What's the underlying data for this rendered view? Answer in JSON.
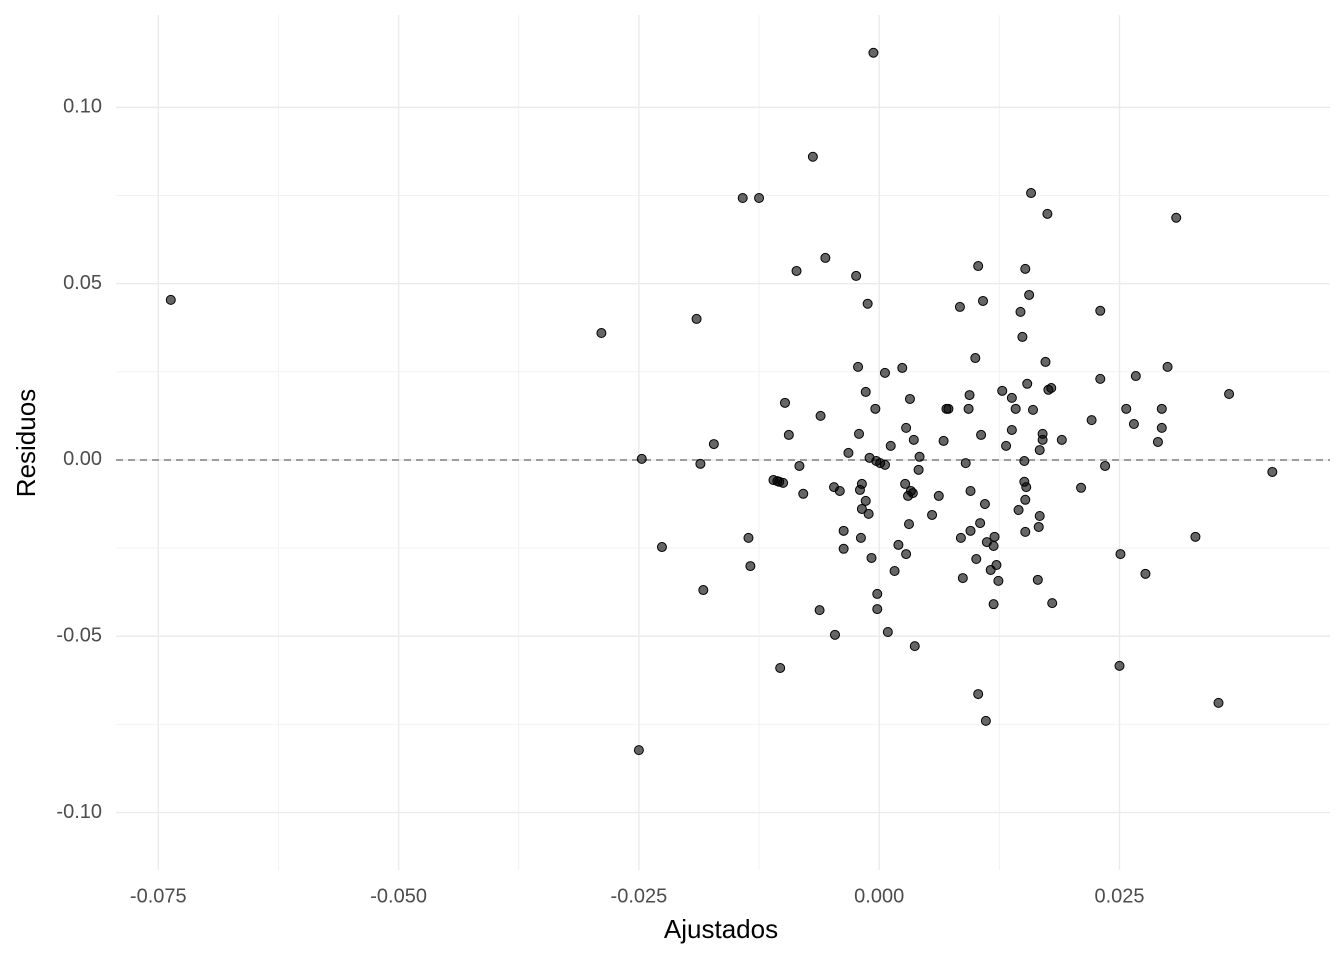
{
  "chart_data": {
    "type": "scatter",
    "x_label": "Ajustados",
    "y_label": "Residuos",
    "color": "#000000",
    "opacity": 0.6,
    "grid": true,
    "hline": 0,
    "xlim": [
      -0.0794,
      0.0469
    ],
    "ylim": [
      -0.1163,
      0.1262
    ],
    "xticks": [
      {
        "value": -0.075,
        "label": "-0.075"
      },
      {
        "value": -0.05,
        "label": "-0.050"
      },
      {
        "value": -0.025,
        "label": "-0.025"
      },
      {
        "value": 0,
        "label": "0.000"
      },
      {
        "value": 0.025,
        "label": "0.025"
      }
    ],
    "yticks": [
      {
        "value": -0.1,
        "label": "-0.10"
      },
      {
        "value": -0.05,
        "label": "-0.05"
      },
      {
        "value": 0,
        "label": "0.00"
      },
      {
        "value": 0.05,
        "label": "0.05"
      },
      {
        "value": 0.1,
        "label": "0.10"
      }
    ],
    "x": [
      -0.0737,
      -0.0289,
      -0.0247,
      -0.025,
      -0.0226,
      -0.019,
      -0.0186,
      -0.0183,
      -0.0172,
      -0.0142,
      -0.0125,
      -0.0136,
      -0.0134,
      -0.0103,
      -0.0098,
      -0.0094,
      -0.011,
      -0.0106,
      -0.0104,
      -0.01,
      -0.0086,
      -0.0083,
      -0.0079,
      -0.0069,
      -0.0062,
      -0.0061,
      -0.0056,
      -0.0047,
      -0.0046,
      -0.0041,
      -0.0037,
      -0.0037,
      -0.0032,
      -0.0024,
      -0.0022,
      -0.0021,
      -0.002,
      -0.0019,
      -0.0018,
      -0.0018,
      -0.0014,
      -0.0014,
      -0.0012,
      -0.0011,
      -0.001,
      -0.0008,
      -0.0006,
      -0.0004,
      -0.0003,
      -0.0002,
      -0.0002,
      0.0001,
      0.0006,
      0.0006,
      0.0009,
      0.0012,
      0.0016,
      0.002,
      0.0024,
      0.0027,
      0.0028,
      0.0028,
      0.003,
      0.0031,
      0.0032,
      0.0033,
      0.0035,
      0.0036,
      0.0037,
      0.0041,
      0.0042,
      0.0055,
      0.0062,
      0.0067,
      0.007,
      0.0072,
      0.0084,
      0.0085,
      0.0087,
      0.009,
      0.0093,
      0.0094,
      0.0095,
      0.0095,
      0.01,
      0.0101,
      0.0103,
      0.0103,
      0.0105,
      0.0106,
      0.0108,
      0.011,
      0.0111,
      0.0112,
      0.0116,
      0.0119,
      0.0119,
      0.012,
      0.0122,
      0.0124,
      0.0128,
      0.0132,
      0.0138,
      0.0138,
      0.0142,
      0.0145,
      0.0147,
      0.0149,
      0.0151,
      0.0151,
      0.0152,
      0.0152,
      0.0152,
      0.0153,
      0.0154,
      0.0156,
      0.0158,
      0.016,
      0.0165,
      0.0166,
      0.0167,
      0.0167,
      0.017,
      0.017,
      0.0173,
      0.0175,
      0.0176,
      0.0179,
      0.018,
      0.019,
      0.021,
      0.0221,
      0.023,
      0.023,
      0.0235,
      0.025,
      0.0251,
      0.0257,
      0.0265,
      0.0267,
      0.0277,
      0.029,
      0.0294,
      0.0294,
      0.03,
      0.0309,
      0.0329,
      0.0353,
      0.0364,
      0.0409
    ],
    "y": [
      0.0454,
      0.036,
      0.0003,
      -0.0823,
      -0.0247,
      0.04,
      -0.0011,
      -0.0369,
      0.0045,
      0.0743,
      0.0743,
      -0.0221,
      -0.0301,
      -0.059,
      0.0162,
      0.0071,
      -0.0057,
      -0.006,
      -0.0062,
      -0.0065,
      0.0536,
      -0.0017,
      -0.0096,
      0.086,
      -0.0426,
      0.0125,
      0.0573,
      -0.0077,
      -0.0496,
      -0.0088,
      -0.0201,
      -0.0252,
      0.002,
      0.0522,
      0.0264,
      0.0074,
      -0.0085,
      -0.0221,
      -0.0139,
      -0.0068,
      0.0193,
      -0.0116,
      0.0443,
      -0.0153,
      0.0006,
      -0.0278,
      0.1155,
      0.0145,
      -0.0003,
      -0.038,
      -0.0423,
      -0.0009,
      -0.0014,
      0.0247,
      -0.0488,
      0.004,
      -0.0315,
      -0.0241,
      0.0261,
      -0.0068,
      -0.0267,
      0.0091,
      -0.0102,
      -0.0182,
      0.0173,
      -0.0088,
      -0.0094,
      0.0057,
      -0.0528,
      -0.0028,
      0.0009,
      -0.0156,
      -0.0102,
      0.0054,
      0.0145,
      0.0145,
      0.0434,
      -0.0221,
      -0.0335,
      -0.0009,
      0.0145,
      0.0184,
      -0.0201,
      -0.0088,
      0.0289,
      -0.0281,
      0.055,
      -0.0664,
      -0.0179,
      0.0071,
      0.0451,
      -0.0125,
      -0.074,
      -0.0233,
      -0.0312,
      -0.0244,
      -0.0409,
      -0.0218,
      -0.0298,
      -0.0343,
      0.0196,
      0.004,
      0.0176,
      0.0085,
      0.0145,
      -0.0142,
      0.042,
      0.0349,
      -0.0062,
      -0.0003,
      -0.0204,
      -0.0113,
      0.0542,
      -0.0077,
      0.0216,
      0.0468,
      0.0757,
      0.0142,
      -0.034,
      -0.019,
      0.0028,
      -0.0159,
      0.0057,
      0.0074,
      0.0278,
      0.0698,
      0.0199,
      0.0204,
      -0.0406,
      0.0057,
      -0.0079,
      0.0113,
      0.0423,
      0.023,
      -0.0017,
      -0.0584,
      -0.0267,
      0.0145,
      0.0102,
      0.0238,
      -0.0323,
      0.0051,
      0.0145,
      0.0091,
      0.0264,
      0.0687,
      -0.0218,
      -0.0689,
      0.0187,
      -0.0034
    ]
  }
}
